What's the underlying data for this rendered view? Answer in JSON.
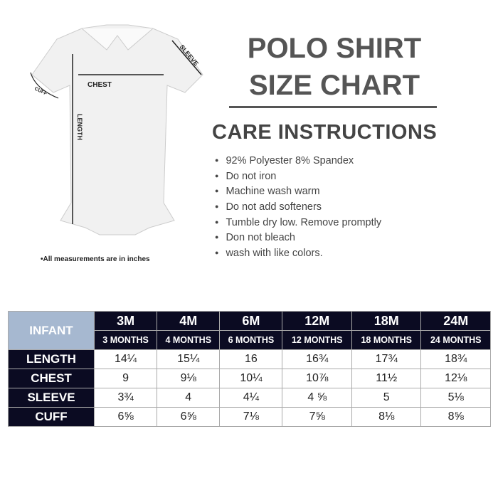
{
  "title_line1": "POLO SHIRT",
  "title_line2": "SIZE CHART",
  "care_heading": "CARE INSTRUCTIONS",
  "care_items": [
    "92% Polyester 8% Spandex",
    "Do not iron",
    "Machine wash warm",
    "Do not add softeners",
    "Tumble dry low. Remove promptly",
    "Don not bleach",
    "wash with like colors."
  ],
  "diagram_labels": {
    "chest": "CHEST",
    "sleeve": "SLEEVE",
    "cuff": "CUFF",
    "length": "LENGTH"
  },
  "note": "•All measurements are in inches",
  "table": {
    "corner": "INFANT",
    "sizes": [
      "3M",
      "4M",
      "6M",
      "12M",
      "18M",
      "24M"
    ],
    "ages": [
      "3 MONTHS",
      "4 MONTHS",
      "6 MONTHS",
      "12 MONTHS",
      "18 MONTHS",
      "24 MONTHS"
    ],
    "rows": [
      {
        "label": "LENGTH",
        "values": [
          "14¼",
          "15¼",
          "16",
          "16¾",
          "17¾",
          "18¾"
        ]
      },
      {
        "label": "CHEST",
        "values": [
          "9",
          "9⅛",
          "10¼",
          "10⅞",
          "11½",
          "12⅛"
        ]
      },
      {
        "label": "SLEEVE",
        "values": [
          "3¾",
          "4",
          "4¼",
          "4 ⅝",
          "5",
          "5⅛"
        ]
      },
      {
        "label": "CUFF",
        "values": [
          "6⅝",
          "6⅝",
          "7⅛",
          "7⅝",
          "8⅛",
          "8⅝"
        ]
      }
    ]
  },
  "colors": {
    "header_dark": "#0b0b22",
    "corner": "#a6b8d0",
    "title": "#555555"
  }
}
